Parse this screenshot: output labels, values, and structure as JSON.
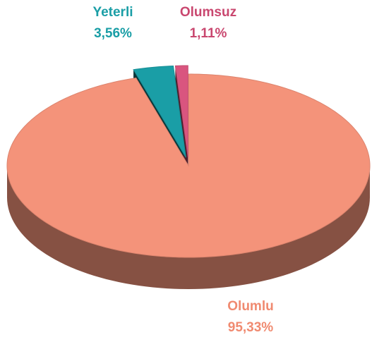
{
  "chart_data": {
    "type": "pie",
    "categories": [
      "Olumlu",
      "Yeterli",
      "Olumsuz"
    ],
    "values": [
      95.33,
      3.56,
      1.11
    ],
    "value_labels": [
      "95,33%",
      "3,56%",
      "1,11%"
    ],
    "colors": [
      "#f4937a",
      "#1a9ea6",
      "#d9557f"
    ],
    "label_colors": [
      "#f08a70",
      "#1a9ea6",
      "#c9476f"
    ]
  }
}
